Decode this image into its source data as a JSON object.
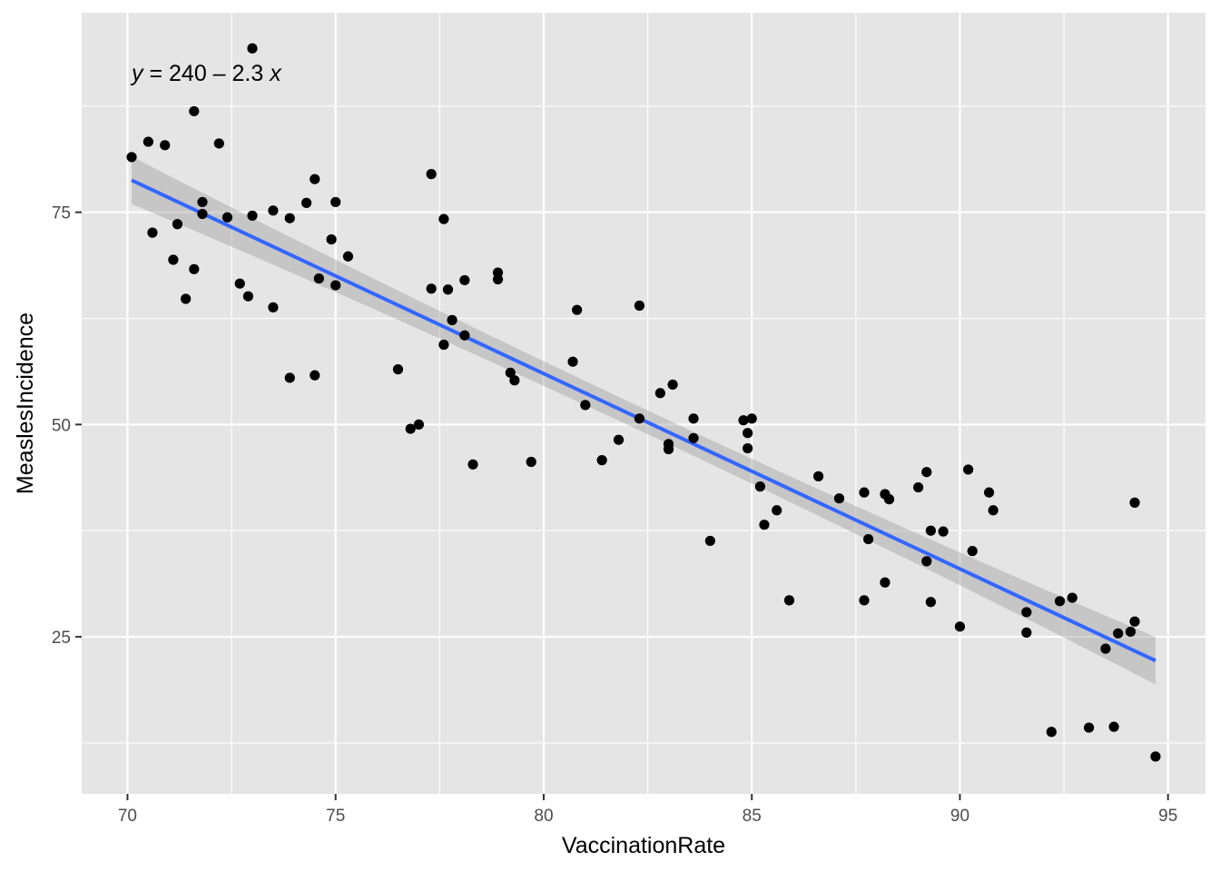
{
  "chart_data": {
    "type": "scatter",
    "title": "",
    "xlabel": "VaccinationRate",
    "ylabel": "MeaslesIncidence",
    "xlim": [
      68.9,
      95.9
    ],
    "ylim": [
      6.5,
      98.5
    ],
    "x_ticks": [
      70,
      75,
      80,
      85,
      90,
      95
    ],
    "y_ticks": [
      25,
      50,
      75
    ],
    "x_tick_labels": [
      "70",
      "75",
      "80",
      "85",
      "90",
      "95"
    ],
    "y_tick_labels": [
      "25",
      "50",
      "75"
    ],
    "grid": true,
    "legend": "none",
    "annotation": {
      "parts": [
        "y",
        " = 240 – 2.3 ",
        "x"
      ],
      "x": 70.1,
      "y": 90.5
    },
    "colors": {
      "panel_background": "#e5e5e5",
      "grid": "#ffffff",
      "points": "#000000",
      "fit_line": "#3366ff",
      "confidence_band": "#999999"
    },
    "fit": {
      "intercept": 240,
      "slope": -2.3,
      "x_range": [
        70.1,
        94.7
      ],
      "band_halfwidth_ends": 2.8,
      "band_halfwidth_center": 1.4
    },
    "points": [
      {
        "x": 70.1,
        "y": 81.5
      },
      {
        "x": 70.5,
        "y": 83.3
      },
      {
        "x": 70.6,
        "y": 72.6
      },
      {
        "x": 70.9,
        "y": 82.9
      },
      {
        "x": 71.1,
        "y": 69.4
      },
      {
        "x": 71.2,
        "y": 73.6
      },
      {
        "x": 71.4,
        "y": 64.8
      },
      {
        "x": 71.6,
        "y": 86.9
      },
      {
        "x": 71.6,
        "y": 68.3
      },
      {
        "x": 71.8,
        "y": 76.2
      },
      {
        "x": 71.8,
        "y": 74.8
      },
      {
        "x": 72.2,
        "y": 83.1
      },
      {
        "x": 72.4,
        "y": 74.4
      },
      {
        "x": 72.7,
        "y": 66.6
      },
      {
        "x": 72.9,
        "y": 65.1
      },
      {
        "x": 73.0,
        "y": 74.6
      },
      {
        "x": 73.0,
        "y": 94.3
      },
      {
        "x": 73.5,
        "y": 63.8
      },
      {
        "x": 73.5,
        "y": 75.2
      },
      {
        "x": 73.9,
        "y": 74.3
      },
      {
        "x": 73.9,
        "y": 55.5
      },
      {
        "x": 74.3,
        "y": 76.1
      },
      {
        "x": 74.5,
        "y": 78.9
      },
      {
        "x": 74.5,
        "y": 55.8
      },
      {
        "x": 74.6,
        "y": 67.2
      },
      {
        "x": 74.9,
        "y": 71.8
      },
      {
        "x": 75.0,
        "y": 66.4
      },
      {
        "x": 75.0,
        "y": 76.2
      },
      {
        "x": 75.3,
        "y": 69.8
      },
      {
        "x": 76.5,
        "y": 56.5
      },
      {
        "x": 76.8,
        "y": 49.5
      },
      {
        "x": 77.0,
        "y": 50.0
      },
      {
        "x": 77.3,
        "y": 79.5
      },
      {
        "x": 77.3,
        "y": 66.0
      },
      {
        "x": 77.6,
        "y": 74.2
      },
      {
        "x": 77.6,
        "y": 59.4
      },
      {
        "x": 77.7,
        "y": 65.9
      },
      {
        "x": 77.8,
        "y": 62.3
      },
      {
        "x": 78.1,
        "y": 67.0
      },
      {
        "x": 78.1,
        "y": 60.5
      },
      {
        "x": 78.3,
        "y": 45.3
      },
      {
        "x": 78.9,
        "y": 67.9
      },
      {
        "x": 78.9,
        "y": 67.1
      },
      {
        "x": 79.2,
        "y": 56.1
      },
      {
        "x": 79.3,
        "y": 55.2
      },
      {
        "x": 79.7,
        "y": 45.6
      },
      {
        "x": 80.7,
        "y": 57.4
      },
      {
        "x": 80.8,
        "y": 63.5
      },
      {
        "x": 81.0,
        "y": 52.3
      },
      {
        "x": 81.4,
        "y": 45.8
      },
      {
        "x": 81.8,
        "y": 48.2
      },
      {
        "x": 82.3,
        "y": 64.0
      },
      {
        "x": 82.3,
        "y": 50.7
      },
      {
        "x": 82.8,
        "y": 53.7
      },
      {
        "x": 83.0,
        "y": 47.1
      },
      {
        "x": 83.0,
        "y": 47.7
      },
      {
        "x": 83.1,
        "y": 54.7
      },
      {
        "x": 83.6,
        "y": 50.7
      },
      {
        "x": 83.6,
        "y": 48.4
      },
      {
        "x": 84.0,
        "y": 36.3
      },
      {
        "x": 84.8,
        "y": 50.5
      },
      {
        "x": 84.9,
        "y": 49.0
      },
      {
        "x": 84.9,
        "y": 47.2
      },
      {
        "x": 85.0,
        "y": 50.7
      },
      {
        "x": 85.2,
        "y": 42.7
      },
      {
        "x": 85.3,
        "y": 38.2
      },
      {
        "x": 85.6,
        "y": 39.9
      },
      {
        "x": 85.9,
        "y": 29.3
      },
      {
        "x": 86.6,
        "y": 43.9
      },
      {
        "x": 87.1,
        "y": 41.3
      },
      {
        "x": 87.7,
        "y": 42.0
      },
      {
        "x": 87.7,
        "y": 29.3
      },
      {
        "x": 87.8,
        "y": 36.5
      },
      {
        "x": 88.2,
        "y": 41.8
      },
      {
        "x": 88.2,
        "y": 31.4
      },
      {
        "x": 88.3,
        "y": 41.2
      },
      {
        "x": 89.0,
        "y": 42.6
      },
      {
        "x": 89.2,
        "y": 44.4
      },
      {
        "x": 89.2,
        "y": 33.9
      },
      {
        "x": 89.3,
        "y": 29.1
      },
      {
        "x": 89.3,
        "y": 37.5
      },
      {
        "x": 89.6,
        "y": 37.4
      },
      {
        "x": 90.0,
        "y": 26.2
      },
      {
        "x": 90.2,
        "y": 44.7
      },
      {
        "x": 90.3,
        "y": 35.1
      },
      {
        "x": 90.7,
        "y": 42.0
      },
      {
        "x": 90.8,
        "y": 39.9
      },
      {
        "x": 91.6,
        "y": 27.9
      },
      {
        "x": 91.6,
        "y": 25.5
      },
      {
        "x": 92.2,
        "y": 13.8
      },
      {
        "x": 92.4,
        "y": 29.2
      },
      {
        "x": 92.7,
        "y": 29.6
      },
      {
        "x": 93.1,
        "y": 14.3
      },
      {
        "x": 93.5,
        "y": 23.6
      },
      {
        "x": 93.7,
        "y": 14.4
      },
      {
        "x": 93.8,
        "y": 25.4
      },
      {
        "x": 94.1,
        "y": 25.6
      },
      {
        "x": 94.2,
        "y": 40.8
      },
      {
        "x": 94.2,
        "y": 26.8
      },
      {
        "x": 94.7,
        "y": 10.9
      }
    ]
  }
}
